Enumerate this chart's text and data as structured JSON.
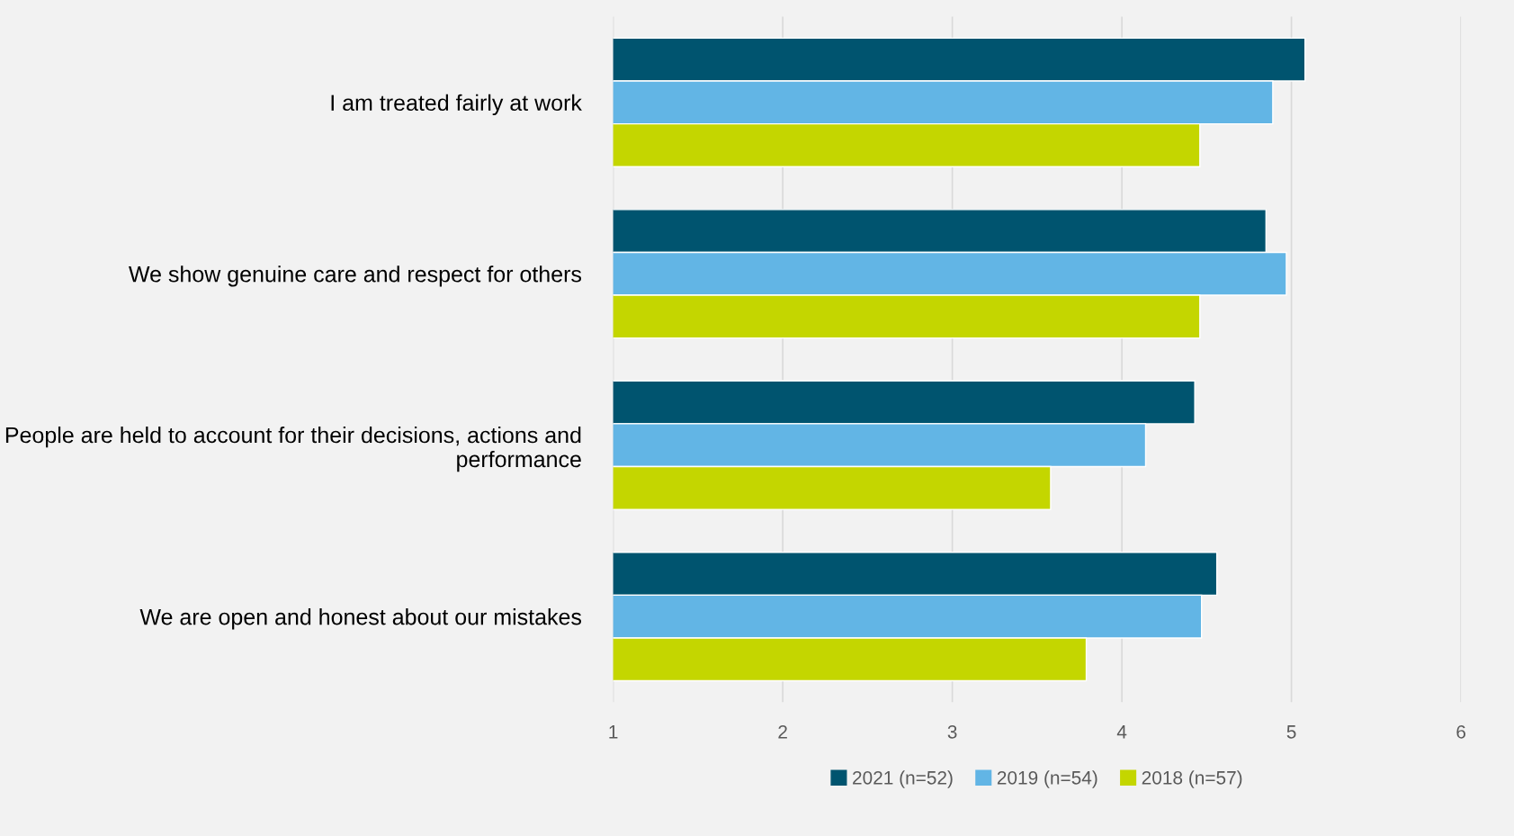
{
  "chart_data": {
    "type": "bar",
    "orientation": "horizontal",
    "categories": [
      "I am treated fairly at work",
      "We show genuine care and respect for others",
      "People are held to account for their decisions, actions and performance",
      "We are open and honest about our mistakes"
    ],
    "series": [
      {
        "name": "2021 (n=52)",
        "color": "#00546f",
        "values": [
          5.08,
          4.85,
          4.43,
          4.56
        ]
      },
      {
        "name": "2019 (n=54)",
        "color": "#62b5e5",
        "values": [
          4.89,
          4.97,
          4.14,
          4.47
        ]
      },
      {
        "name": "2018 (n=57)",
        "color": "#c4d600",
        "values": [
          4.46,
          4.46,
          3.58,
          3.79
        ]
      }
    ],
    "xlim": [
      1,
      6
    ],
    "xticks": [
      1,
      2,
      3,
      4,
      5,
      6
    ],
    "grid": "x",
    "legend": "bottom"
  }
}
